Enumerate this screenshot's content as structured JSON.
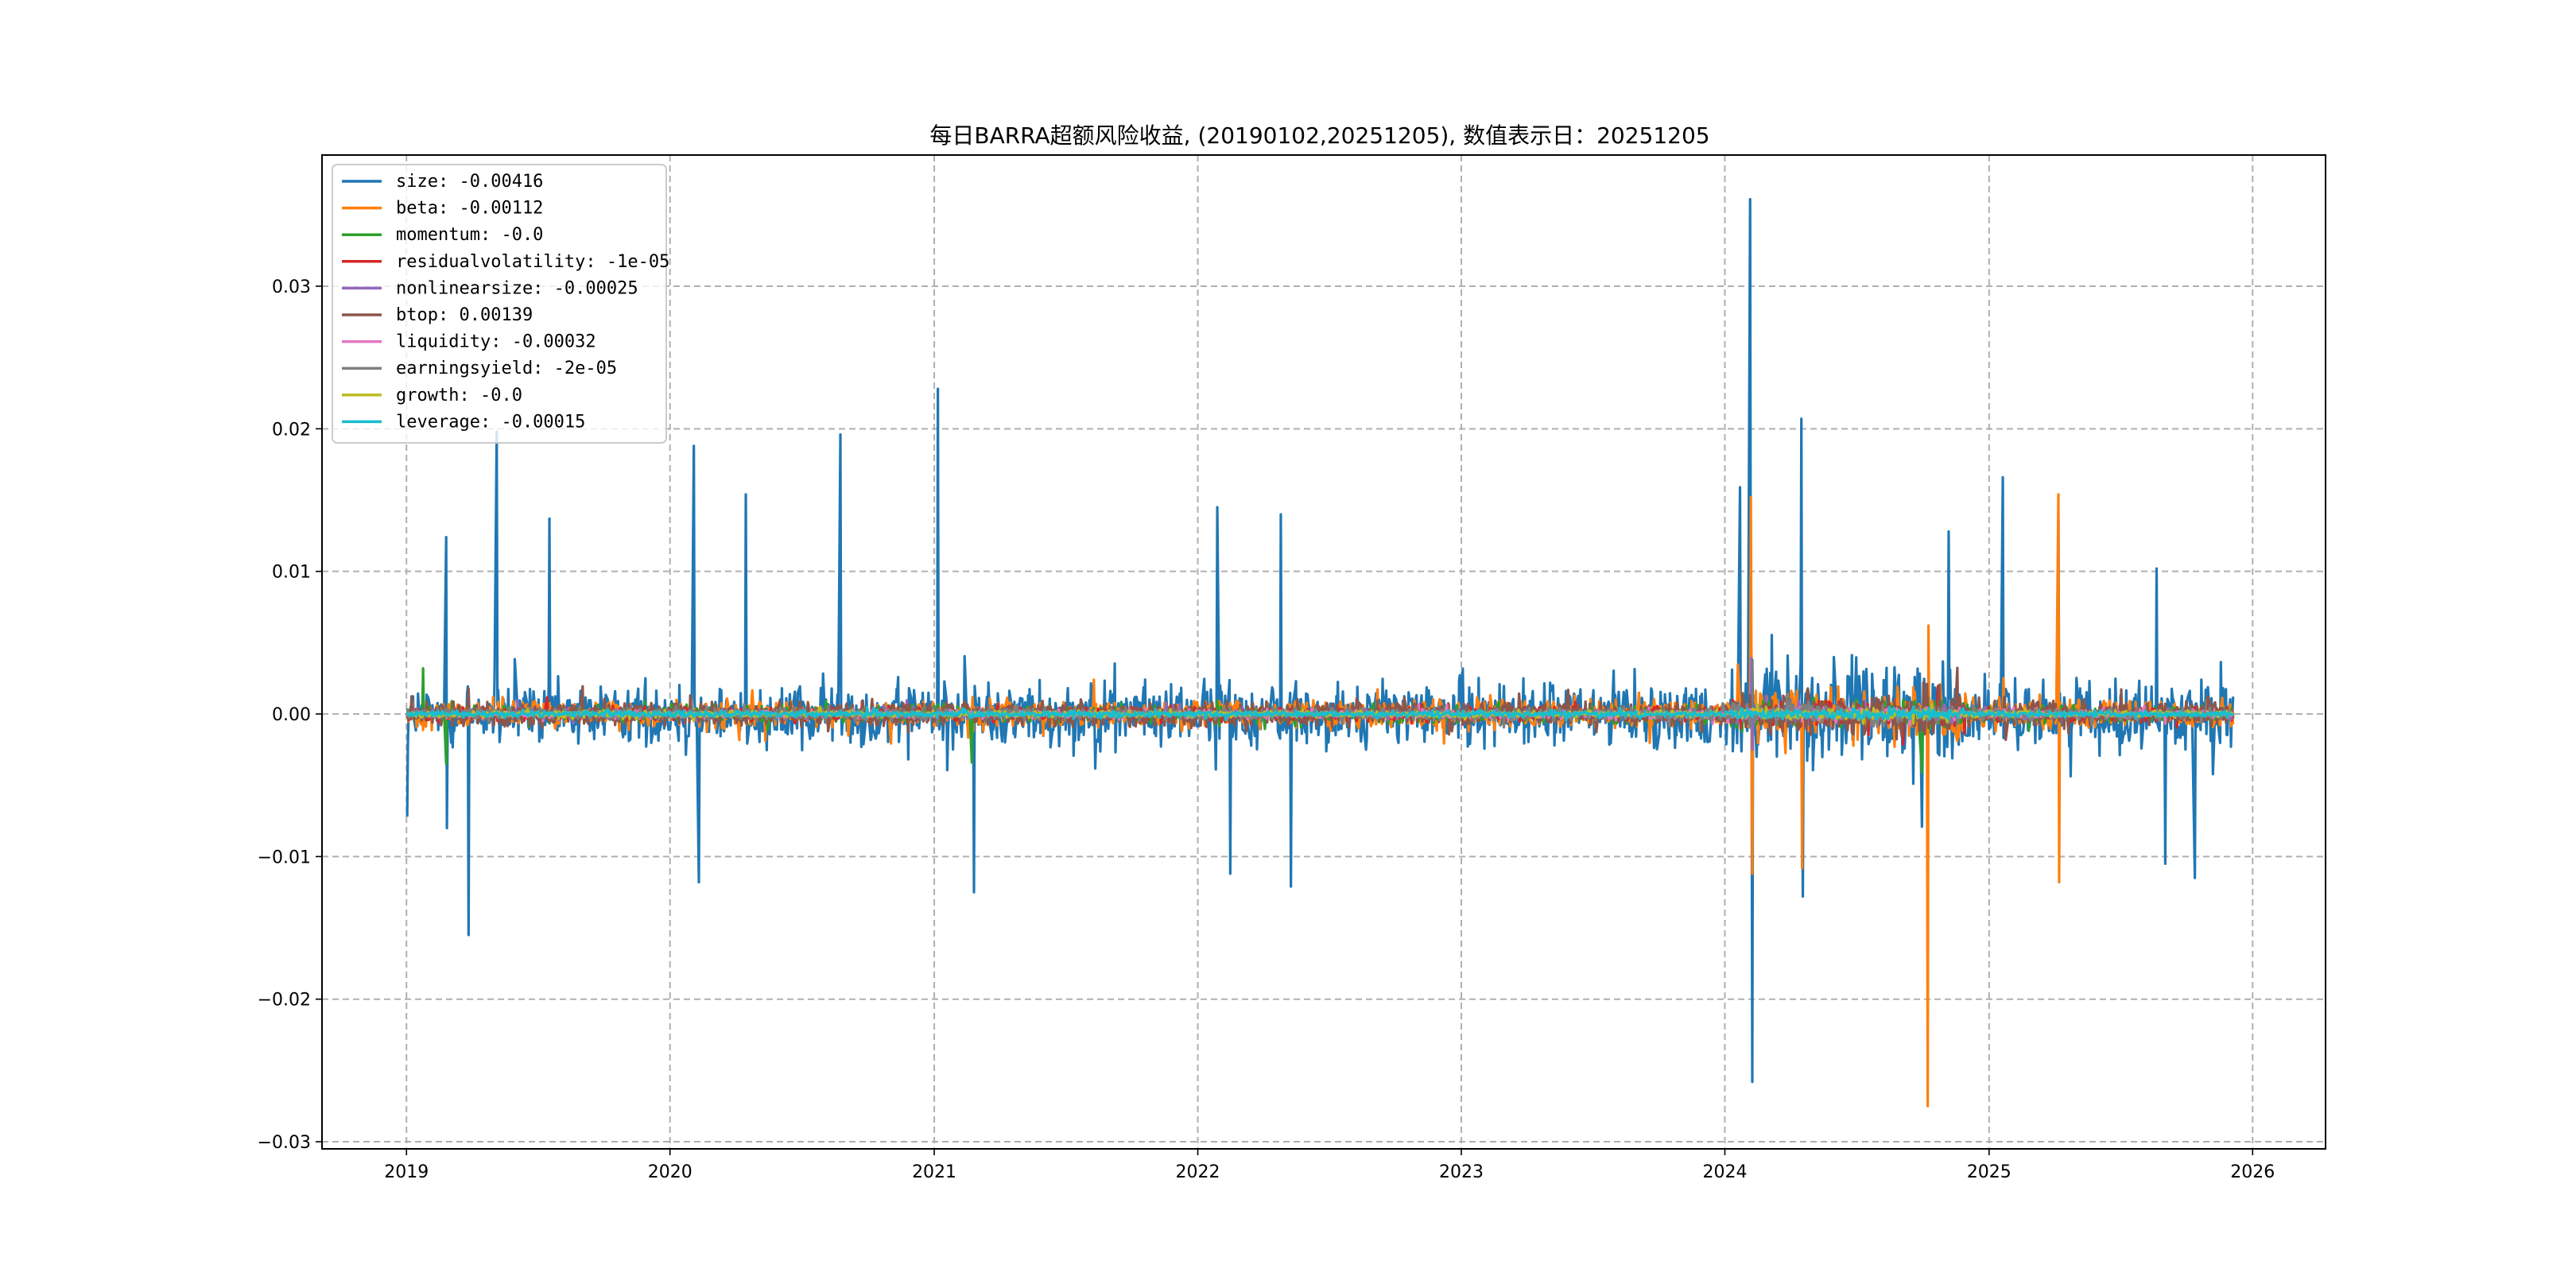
{
  "chart_data": {
    "type": "line",
    "title": "每日BARRA超额风险收益, (20190102,20251205), 数值表示日：20251205",
    "xlabel": "",
    "ylabel": "",
    "xlim": [
      "2018-09-06",
      "2026-04-12"
    ],
    "ylim": [
      -0.0305,
      0.0392
    ],
    "x_ticks": [
      "2019",
      "2020",
      "2021",
      "2022",
      "2023",
      "2024",
      "2025",
      "2026"
    ],
    "y_ticks": [
      "0.03",
      "0.02",
      "0.01",
      "0.00",
      "−0.01",
      "−0.02",
      "−0.03"
    ],
    "y_tick_values": [
      0.03,
      0.02,
      0.01,
      0.0,
      -0.01,
      -0.02,
      -0.03
    ],
    "grid": true,
    "legend_position": "upper-left",
    "date_range": [
      "2019-01-02",
      "2025-12-05"
    ],
    "series": [
      {
        "name": "size: -0.00416",
        "color": "#1f77b4",
        "amplitude": 0.0032,
        "spikes": [
          [
            "2019-01-02",
            -0.0072
          ],
          [
            "2019-02-25",
            0.0124
          ],
          [
            "2019-02-26",
            -0.008
          ],
          [
            "2019-03-28",
            -0.0155
          ],
          [
            "2019-05-06",
            0.0198
          ],
          [
            "2019-07-18",
            0.0137
          ],
          [
            "2020-02-03",
            0.0188
          ],
          [
            "2020-02-10",
            -0.0118
          ],
          [
            "2020-04-15",
            0.0154
          ],
          [
            "2020-08-24",
            0.0196
          ],
          [
            "2021-01-06",
            0.0228
          ],
          [
            "2021-02-25",
            -0.0125
          ],
          [
            "2022-01-28",
            0.0145
          ],
          [
            "2022-02-15",
            -0.0112
          ],
          [
            "2022-04-26",
            0.014
          ],
          [
            "2022-05-10",
            -0.0121
          ],
          [
            "2024-01-22",
            0.0159
          ],
          [
            "2024-02-05",
            0.0361
          ],
          [
            "2024-02-08",
            -0.0258
          ],
          [
            "2024-04-16",
            0.0207
          ],
          [
            "2024-04-18",
            -0.0128
          ],
          [
            "2024-09-30",
            -0.0079
          ],
          [
            "2024-11-06",
            0.0128
          ],
          [
            "2025-01-20",
            0.0166
          ],
          [
            "2025-04-07",
            0.0136
          ],
          [
            "2025-08-21",
            0.0102
          ],
          [
            "2025-09-02",
            -0.0105
          ],
          [
            "2025-10-13",
            -0.0115
          ]
        ]
      },
      {
        "name": "beta: -0.00112",
        "color": "#ff7f0e",
        "amplitude": 0.0014,
        "spikes": [
          [
            "2024-02-06",
            0.0152
          ],
          [
            "2024-02-08",
            -0.0112
          ],
          [
            "2024-04-17",
            -0.0108
          ],
          [
            "2024-10-08",
            -0.0275
          ],
          [
            "2024-10-09",
            0.0062
          ],
          [
            "2025-04-07",
            0.0154
          ],
          [
            "2025-04-08",
            -0.0118
          ]
        ]
      },
      {
        "name": "momentum: -0.0",
        "color": "#2ca02c",
        "amplitude": 0.0008,
        "spikes": [
          [
            "2019-01-24",
            0.0032
          ],
          [
            "2019-02-25",
            -0.0035
          ],
          [
            "2021-02-22",
            -0.0034
          ],
          [
            "2024-02-08",
            0.0038
          ],
          [
            "2024-09-30",
            -0.0041
          ]
        ]
      },
      {
        "name": "residualvolatility: -1e-05",
        "color": "#d62728",
        "amplitude": 0.0007,
        "spikes": []
      },
      {
        "name": "nonlinearsize: -0.00025",
        "color": "#9467bd",
        "amplitude": 0.0005,
        "spikes": [
          [
            "2024-02-07",
            0.0039
          ],
          [
            "2024-02-08",
            -0.0025
          ]
        ]
      },
      {
        "name": "btop: 0.00139",
        "color": "#8c564b",
        "amplitude": 0.0012,
        "spikes": []
      },
      {
        "name": "liquidity: -0.00032",
        "color": "#e377c2",
        "amplitude": 0.0004,
        "spikes": []
      },
      {
        "name": "earningsyield: -2e-05",
        "color": "#7f7f7f",
        "amplitude": 0.0006,
        "spikes": []
      },
      {
        "name": "growth: -0.0",
        "color": "#bcbd22",
        "amplitude": 0.0003,
        "spikes": []
      },
      {
        "name": "leverage: -0.00015",
        "color": "#17becf",
        "amplitude": 0.0003,
        "spikes": []
      }
    ]
  }
}
